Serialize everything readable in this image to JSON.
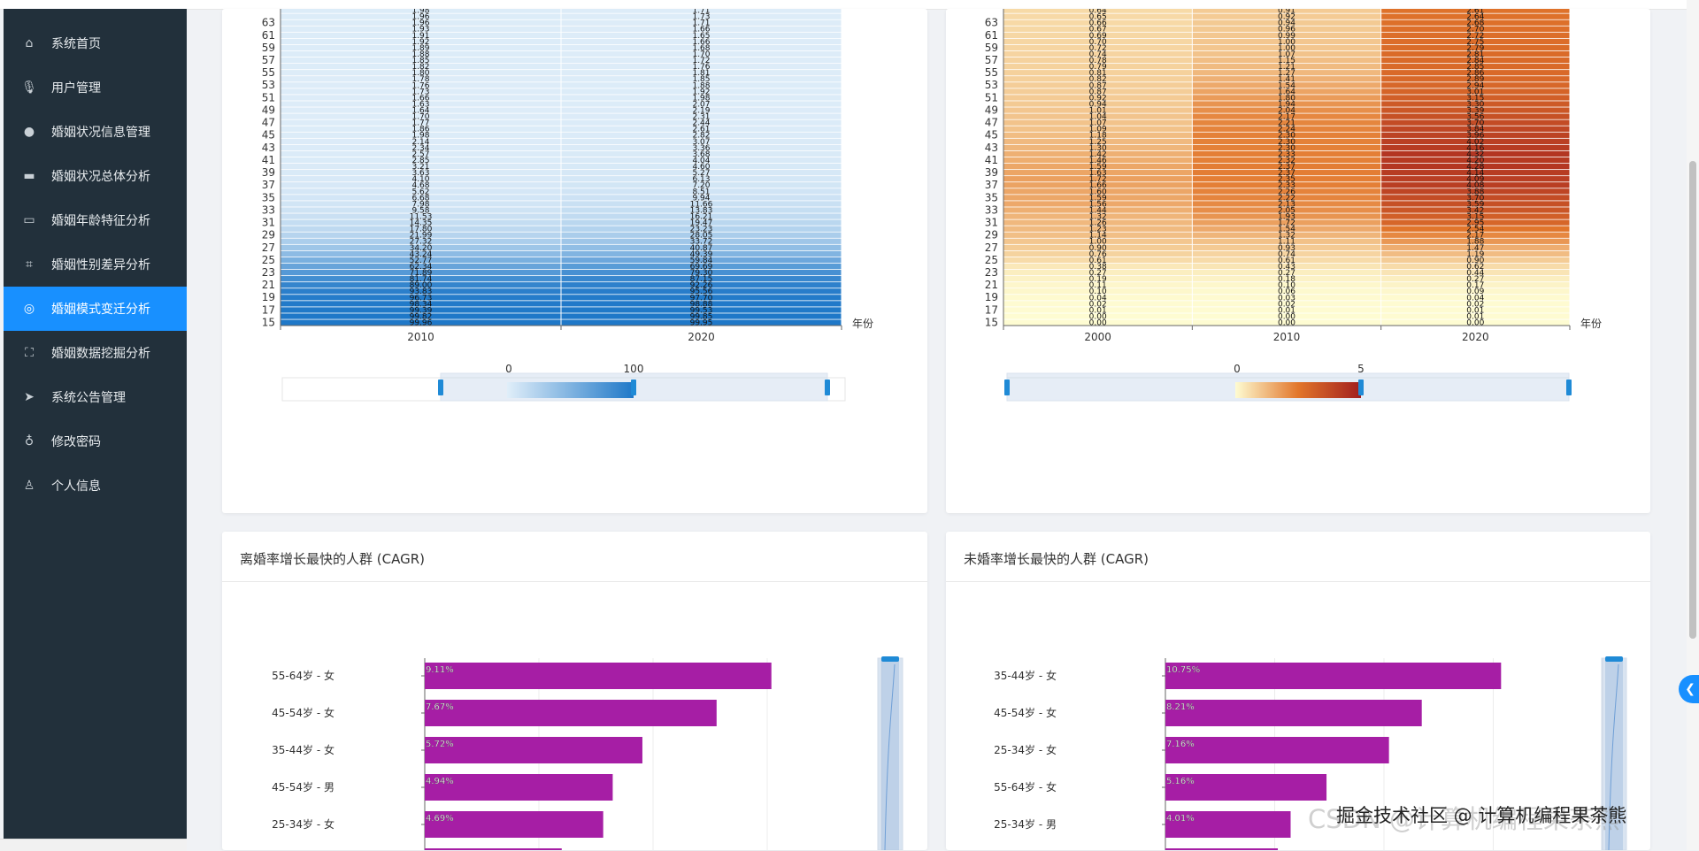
{
  "sidebar": {
    "items": [
      {
        "label": "系统首页",
        "icon": "home-icon"
      },
      {
        "label": "用户管理",
        "icon": "microphone-icon"
      },
      {
        "label": "婚姻状况信息管理",
        "icon": "location-pin-icon"
      },
      {
        "label": "婚姻状况总体分析",
        "icon": "briefcase-icon"
      },
      {
        "label": "婚姻年龄特征分析",
        "icon": "chat-bubble-icon"
      },
      {
        "label": "婚姻性别差异分析",
        "icon": "crop-icon"
      },
      {
        "label": "婚姻模式变迁分析",
        "icon": "lifebuoy-icon",
        "active": true
      },
      {
        "label": "婚姻数据挖掘分析",
        "icon": "fullscreen-icon"
      },
      {
        "label": "系统公告管理",
        "icon": "paper-plane-icon"
      },
      {
        "label": "修改密码",
        "icon": "key-icon"
      },
      {
        "label": "个人信息",
        "icon": "user-icon"
      }
    ]
  },
  "heatmap_left": {
    "x_name": "年份",
    "visualmap": {
      "min_label": "0",
      "max_label": "100"
    },
    "colors": {
      "low": "#e0eef9",
      "high": "#1f78c8"
    }
  },
  "heatmap_right": {
    "x_name": "年份",
    "visualmap": {
      "min_label": "0",
      "max_label": "5"
    },
    "colors": {
      "low": "#fefcd2",
      "mid": "#e2762b",
      "high": "#a11e1e"
    }
  },
  "bar_left": {
    "title": "离婚率增长最快的人群 (CAGR)",
    "bar_color": "#a61ea5"
  },
  "bar_right": {
    "title": "未婚率增长最快的人群 (CAGR)",
    "bar_color": "#a61ea5"
  },
  "watermark": "掘金技术社区 @ 计算机编程果茶熊",
  "watermark_bg": "CSDN @计算机编程果茶熊",
  "chart_data": [
    {
      "type": "heatmap",
      "xlabel": "年份",
      "x": [
        "2010",
        "2020"
      ],
      "y": [
        15,
        16,
        17,
        18,
        19,
        20,
        21,
        22,
        23,
        24,
        25,
        26,
        27,
        28,
        29,
        30,
        31,
        32,
        33,
        34,
        35,
        36,
        37,
        38,
        39,
        40,
        41,
        42,
        43,
        44,
        45,
        46,
        47,
        48,
        49,
        50,
        51,
        52,
        53,
        54,
        55,
        56,
        57,
        58,
        59,
        60,
        61,
        62,
        63,
        64,
        65
      ],
      "ytick_labels": [
        "15",
        "17",
        "19",
        "21",
        "23",
        "25",
        "27",
        "29",
        "31",
        "33",
        "35",
        "37",
        "39",
        "41",
        "43",
        "45",
        "47",
        "49",
        "51",
        "53",
        "55",
        "57",
        "59",
        "61",
        "63"
      ],
      "values_by_x": [
        [
          99.96,
          99.82,
          99.39,
          98.34,
          96.73,
          93.83,
          89.0,
          81.74,
          71.89,
          62.34,
          52.77,
          43.24,
          34.2,
          27.32,
          21.99,
          17.8,
          14.35,
          11.53,
          9.58,
          7.98,
          6.68,
          5.62,
          4.68,
          4.1,
          3.63,
          3.21,
          2.85,
          2.57,
          2.34,
          2.14,
          1.98,
          1.86,
          1.77,
          1.7,
          1.64,
          1.63,
          1.66,
          1.73,
          1.76,
          1.78,
          1.8,
          1.82,
          1.85,
          1.88,
          1.89,
          1.92,
          1.91,
          1.93,
          1.96,
          1.96,
          1.98
        ],
        [
          99.95,
          99.85,
          99.53,
          98.88,
          97.7,
          95.56,
          92.26,
          87.15,
          79.3,
          69.69,
          59.84,
          49.39,
          40.87,
          33.72,
          28.05,
          23.23,
          19.47,
          16.21,
          13.83,
          11.66,
          9.94,
          8.51,
          7.2,
          6.13,
          5.27,
          4.6,
          4.04,
          3.68,
          3.36,
          3.07,
          2.82,
          2.61,
          2.44,
          2.31,
          2.19,
          2.07,
          1.98,
          1.92,
          1.88,
          1.85,
          1.81,
          1.76,
          1.72,
          1.7,
          1.68,
          1.66,
          1.65,
          1.66,
          1.71,
          1.73,
          1.71
        ]
      ],
      "visualmap_range": [
        0,
        100
      ]
    },
    {
      "type": "heatmap",
      "xlabel": "年份",
      "x": [
        "2000",
        "2010",
        "2020"
      ],
      "y": [
        15,
        16,
        17,
        18,
        19,
        20,
        21,
        22,
        23,
        24,
        25,
        26,
        27,
        28,
        29,
        30,
        31,
        32,
        33,
        34,
        35,
        36,
        37,
        38,
        39,
        40,
        41,
        42,
        43,
        44,
        45,
        46,
        47,
        48,
        49,
        50,
        51,
        52,
        53,
        54,
        55,
        56,
        57,
        58,
        59,
        60,
        61,
        62,
        63,
        64,
        65
      ],
      "ytick_labels": [
        "15",
        "17",
        "19",
        "21",
        "23",
        "25",
        "27",
        "29",
        "31",
        "33",
        "35",
        "37",
        "39",
        "41",
        "43",
        "45",
        "47",
        "49",
        "51",
        "53",
        "55",
        "57",
        "59",
        "61",
        "63"
      ],
      "values_by_x": [
        [
          0.0,
          0.0,
          0.01,
          0.02,
          0.04,
          0.1,
          0.11,
          0.19,
          0.27,
          0.38,
          0.61,
          0.76,
          0.9,
          1.0,
          1.14,
          1.23,
          1.26,
          1.32,
          1.44,
          1.56,
          1.59,
          1.6,
          1.66,
          1.72,
          1.63,
          1.59,
          1.46,
          1.42,
          1.3,
          1.25,
          1.18,
          1.09,
          1.07,
          1.04,
          1.01,
          0.94,
          0.92,
          0.87,
          0.87,
          0.82,
          0.81,
          0.79,
          0.78,
          0.74,
          0.72,
          0.7,
          0.69,
          0.67,
          0.66,
          0.65,
          0.64
        ],
        [
          0.0,
          0.0,
          0.01,
          0.02,
          0.03,
          0.06,
          0.1,
          0.18,
          0.27,
          0.43,
          0.61,
          0.74,
          0.93,
          1.11,
          1.32,
          1.54,
          1.72,
          1.93,
          2.05,
          2.13,
          2.22,
          2.26,
          2.33,
          2.35,
          2.37,
          2.37,
          2.32,
          2.33,
          2.3,
          2.3,
          2.3,
          2.24,
          2.21,
          2.17,
          2.04,
          1.94,
          1.8,
          1.64,
          1.54,
          1.41,
          1.27,
          1.21,
          1.15,
          1.07,
          1.0,
          1.0,
          0.99,
          0.96,
          0.94,
          0.92,
          0.91
        ],
        [
          0.0,
          0.01,
          0.01,
          0.02,
          0.04,
          0.09,
          0.17,
          0.27,
          0.44,
          0.62,
          0.9,
          1.19,
          1.47,
          1.88,
          2.17,
          2.54,
          2.95,
          3.15,
          3.42,
          3.59,
          3.7,
          3.88,
          4.08,
          4.09,
          4.14,
          4.28,
          4.2,
          4.32,
          4.16,
          4.02,
          3.96,
          3.84,
          3.7,
          3.56,
          3.39,
          3.3,
          3.15,
          3.01,
          2.94,
          2.89,
          2.86,
          2.85,
          2.84,
          2.81,
          2.79,
          2.75,
          2.72,
          2.7,
          2.68,
          2.64,
          2.61
        ]
      ],
      "visualmap_range": [
        0,
        5
      ]
    },
    {
      "type": "bar",
      "title": "离婚率增长最快的人群 (CAGR)",
      "categories": [
        "55-64岁 - 女",
        "45-54岁 - 女",
        "35-44岁 - 女",
        "45-54岁 - 男",
        "25-34岁 - 女"
      ],
      "values": [
        9.11,
        7.67,
        5.72,
        4.94,
        4.69
      ],
      "value_labels": [
        "9.11%",
        "7.67%",
        "5.72%",
        "4.94%",
        "4.69%"
      ],
      "xlim": [
        0,
        12
      ]
    },
    {
      "type": "bar",
      "title": "未婚率增长最快的人群 (CAGR)",
      "categories": [
        "35-44岁 - 女",
        "45-54岁 - 女",
        "25-34岁 - 女",
        "55-64岁 - 女",
        "25-34岁 - 男"
      ],
      "values": [
        10.75,
        8.21,
        7.16,
        5.16,
        4.01
      ],
      "value_labels": [
        "10.75%",
        "8.21%",
        "7.16%",
        "5.16%",
        "4.01%"
      ],
      "xlim": [
        0,
        14
      ]
    }
  ]
}
